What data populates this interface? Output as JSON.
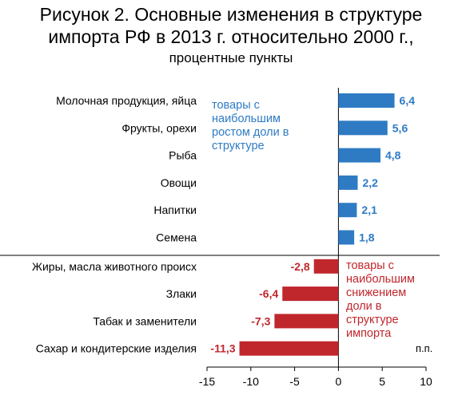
{
  "title": {
    "line1": "Рисунок 2. Основные изменения в структуре",
    "line2": "импорта РФ в 2013 г. относительно 2000 г.,",
    "line3": "процентные пункты"
  },
  "annotations": {
    "growth": "товары с\nнаибольшим\nростом доли в\nструктуре",
    "decline": "товары с\nнаибольшим\nснижением\nдоли в\nструктуре\nимпорта",
    "unit": "п.п."
  },
  "colors": {
    "positive": "#2e7bc4",
    "negative": "#c0272d",
    "axis": "#000000"
  },
  "chart_data": {
    "type": "bar",
    "orientation": "horizontal",
    "categories": [
      "Молочная продукция, яйца",
      "Фрукты, орехи",
      "Рыба",
      "Овощи",
      "Напитки",
      "Семена",
      "Жиры, масла животного происх",
      "Злаки",
      "Табак и заменители",
      "Сахар и кондитерские изделия"
    ],
    "values": [
      6.4,
      5.6,
      4.8,
      2.2,
      2.1,
      1.8,
      -2.8,
      -6.4,
      -7.3,
      -11.3
    ],
    "value_labels": [
      "6,4",
      "5,6",
      "4,8",
      "2,2",
      "2,1",
      "1,8",
      "-2,8",
      "-6,4",
      "-7,3",
      "-11,3"
    ],
    "xlim": [
      -15,
      10
    ],
    "xticks": [
      -15,
      -10,
      -5,
      0,
      5,
      10
    ],
    "xtick_labels": [
      "-15",
      "-10",
      "-5",
      "0",
      "5",
      "10"
    ],
    "xlabel": "п.п.",
    "ylabel": "",
    "grid": false
  }
}
